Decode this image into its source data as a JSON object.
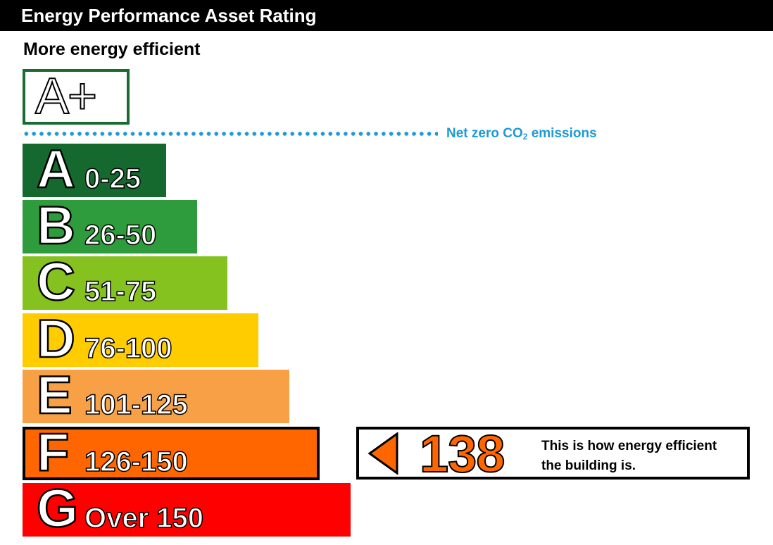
{
  "header": {
    "title": "Energy Performance Asset Rating"
  },
  "top_label": "More energy efficient",
  "aplus": {
    "label": "A+",
    "border_color": "#1a6b30"
  },
  "netzero": {
    "label_main": "Net zero CO",
    "label_sub": "2",
    "label_tail": " emissions",
    "color": "#1e9ad6"
  },
  "chart_data": {
    "type": "bar",
    "title": "Energy Performance Asset Rating",
    "categories": [
      "A",
      "B",
      "C",
      "D",
      "E",
      "F",
      "G"
    ],
    "bands": [
      {
        "letter": "A",
        "range": "0-25",
        "color": "#16692e"
      },
      {
        "letter": "B",
        "range": "26-50",
        "color": "#2e9c3c"
      },
      {
        "letter": "C",
        "range": "51-75",
        "color": "#85c21f"
      },
      {
        "letter": "D",
        "range": "76-100",
        "color": "#ffcc00"
      },
      {
        "letter": "E",
        "range": "101-125",
        "color": "#f8a046"
      },
      {
        "letter": "F",
        "range": "126-150",
        "color": "#ff6600"
      },
      {
        "letter": "G",
        "range": "Over 150",
        "color": "#ff0000"
      }
    ],
    "current_band": "F",
    "rating_value": "138"
  },
  "rating": {
    "value": "138",
    "description_line1": "This is how energy efficient",
    "description_line2": "the building is."
  }
}
